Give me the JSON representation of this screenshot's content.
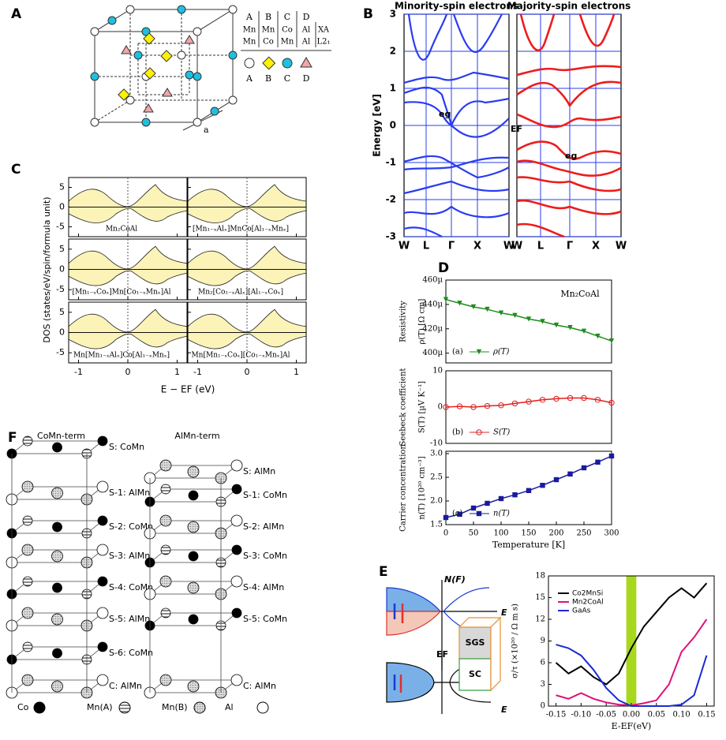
{
  "figure": {
    "panel_labels": [
      "A",
      "B",
      "C",
      "D",
      "E",
      "F"
    ],
    "a": {
      "columns": [
        "A",
        "B",
        "C",
        "D"
      ],
      "rows": [
        [
          "Mn",
          "Mn",
          "Co",
          "Al",
          "XA"
        ],
        [
          "Mn",
          "Co",
          "Mn",
          "Al",
          "L2₁"
        ]
      ],
      "legend": [
        "A",
        "B",
        "C",
        "D"
      ],
      "lattice_label": "a"
    },
    "b": {
      "titles": [
        "Minority-spin electrons",
        "Majority-spin electrons"
      ],
      "ylabel": "Energy [eV]",
      "ylim": [
        -3,
        3
      ],
      "yticks": [
        -3,
        -2,
        -1,
        0,
        1,
        2,
        3
      ],
      "kpoints": [
        "W",
        "L",
        "Γ",
        "X",
        "W"
      ],
      "gap_labels": [
        "eg",
        "eg"
      ],
      "fermi_label": "EF"
    },
    "c": {
      "ylabel": "DOS (states/eV/spin/formula unit)",
      "xlabel": "E − EF (eV)",
      "xlim": [
        -1.2,
        1.2
      ],
      "ylim": [
        -7.5,
        7.5
      ],
      "xticks": [
        -1,
        0,
        1
      ],
      "yticks": [
        -5,
        0,
        5
      ],
      "panels": [
        "Mn₂CoAl",
        "[Mn₁₋ₓAlₓ]MnCo[Al₁₋ₓMnₓ]",
        "[Mn₁₋ₓCoₓ]Mn[Co₁₋ₓMnₓ]Al",
        "Mn₂[Co₁₋ₓAlₓ][Al₁₋ₓCoₓ]",
        "Mn[Mn₁₋ₓAlₓ]Co[Al₁₋ₓMnₓ]",
        "Mn[Mn₁₋ₓCoₓ][Co₁₋ₓMnₓ]Al"
      ]
    },
    "e": {
      "dos_axis": "N(F)",
      "energy_axis": [
        "E",
        "E"
      ],
      "fermi_label": "EF",
      "blocks": [
        "SGS",
        "SC"
      ]
    },
    "f": {
      "titles": [
        "CoMn-term",
        "AlMn-term"
      ],
      "left_layers": [
        "S: CoMn",
        "S-1: AlMn",
        "S-2: CoMn",
        "S-3: AlMn",
        "S-4: CoMn",
        "S-5: AlMn",
        "S-6: CoMn",
        "C: AlMn"
      ],
      "right_layers": [
        "S: AlMn",
        "S-1: CoMn",
        "S-2: AlMn",
        "S-3: CoMn",
        "S-4: AlMn",
        "S-5: CoMn",
        "C: AlMn"
      ],
      "legend": [
        "Co",
        "Mn(A)",
        "Mn(B)",
        "Al"
      ]
    }
  },
  "chart_data": [
    {
      "type": "line",
      "annotation": "Mn₂CoAl",
      "ylabel": [
        "Resistivity",
        "ρ(T) [Ω cm]"
      ],
      "tag": "(a)",
      "x": [
        0,
        25,
        50,
        75,
        100,
        125,
        150,
        175,
        200,
        225,
        250,
        275,
        300
      ],
      "xlim": [
        0,
        300
      ],
      "ylim": [
        0.000392,
        0.00046
      ],
      "yticks": [
        {
          "value": 0.0004,
          "label": "400µ"
        },
        {
          "value": 0.00042,
          "label": "420µ"
        },
        {
          "value": 0.00044,
          "label": "440µ"
        },
        {
          "value": 0.00046,
          "label": "460µ"
        }
      ],
      "series": [
        {
          "name": "ρ(T)",
          "color": "#1e8c1e",
          "marker": "triangle-down",
          "values": [
            0.000444,
            0.000441,
            0.000438,
            0.000436,
            0.000433,
            0.000431,
            0.000428,
            0.000426,
            0.000423,
            0.000421,
            0.000418,
            0.000414,
            0.00041
          ]
        }
      ]
    },
    {
      "type": "line",
      "ylabel": [
        "Seebeck coefficient",
        "S(T) [µV K⁻¹]"
      ],
      "tag": "(b)",
      "x": [
        0,
        25,
        50,
        75,
        100,
        125,
        150,
        175,
        200,
        225,
        250,
        275,
        300
      ],
      "xlim": [
        0,
        300
      ],
      "ylim": [
        -10,
        10
      ],
      "yticks": [
        -10,
        0,
        10
      ],
      "series": [
        {
          "name": "S(T)",
          "color": "#e02020",
          "marker": "circle",
          "values": [
            0,
            0.2,
            0,
            0.3,
            0.5,
            1,
            1.5,
            2,
            2.3,
            2.5,
            2.5,
            2,
            1.2
          ]
        }
      ]
    },
    {
      "type": "line",
      "ylabel": [
        "Carrier concentration",
        "n(T) [10²⁰ cm⁻³]"
      ],
      "tag": "(c)",
      "xlabel": "Temperature [K]",
      "x": [
        0,
        25,
        50,
        75,
        100,
        125,
        150,
        175,
        200,
        225,
        250,
        275,
        300
      ],
      "xlim": [
        0,
        300
      ],
      "xticks": [
        0,
        50,
        100,
        150,
        200,
        250,
        300
      ],
      "ylim": [
        1.5,
        3.05
      ],
      "yticks": [
        1.5,
        {
          "value": 2,
          "label": "2.0"
        },
        2.5,
        {
          "value": 3,
          "label": "3.0"
        }
      ],
      "series": [
        {
          "name": "n(T)",
          "color": "#1a1aa0",
          "marker": "square",
          "values": [
            1.65,
            1.72,
            1.85,
            1.95,
            2.05,
            2.13,
            2.22,
            2.33,
            2.45,
            2.57,
            2.7,
            2.82,
            2.95
          ]
        }
      ]
    },
    {
      "type": "line",
      "xlabel": "E-EF(eV)",
      "ylabel": [
        "σ/τ (×10²⁰ / Ω m s)"
      ],
      "legend": "upper-left",
      "highlight": [
        -0.01,
        0.01
      ],
      "highlight_color": "#a8d81e",
      "x": [
        -0.15,
        -0.125,
        -0.1,
        -0.075,
        -0.05,
        -0.025,
        0,
        0.025,
        0.05,
        0.075,
        0.1,
        0.125,
        0.15
      ],
      "xlim": [
        -0.165,
        0.165
      ],
      "ylim": [
        0,
        18
      ],
      "xticks": [
        {
          "value": -0.15,
          "label": "-0.15"
        },
        {
          "value": -0.1,
          "label": "-0.10"
        },
        {
          "value": -0.05,
          "label": "-0.05"
        },
        {
          "value": 0,
          "label": "0.00"
        },
        {
          "value": 0.05,
          "label": "0.05"
        },
        {
          "value": 0.1,
          "label": "0.10"
        },
        {
          "value": 0.15,
          "label": "0.15"
        }
      ],
      "yticks": [
        0,
        3,
        6,
        9,
        12,
        15,
        18
      ],
      "series": [
        {
          "name": "Co2MnSi",
          "color": "#000000",
          "values": [
            6,
            4.5,
            5.5,
            4,
            3,
            4.5,
            8,
            11,
            13,
            15,
            16.3,
            15,
            17
          ]
        },
        {
          "name": "Mn2CoAl",
          "color": "#e0107a",
          "values": [
            1.5,
            1,
            1.8,
            1,
            0.5,
            0.2,
            0.1,
            0.4,
            0.8,
            3,
            7.5,
            9.5,
            12
          ]
        },
        {
          "name": "GaAs",
          "color": "#1a2ad8",
          "values": [
            8.5,
            8,
            7,
            5,
            2.5,
            0.8,
            0,
            0,
            0,
            0,
            0.2,
            1.5,
            7
          ]
        }
      ]
    }
  ]
}
